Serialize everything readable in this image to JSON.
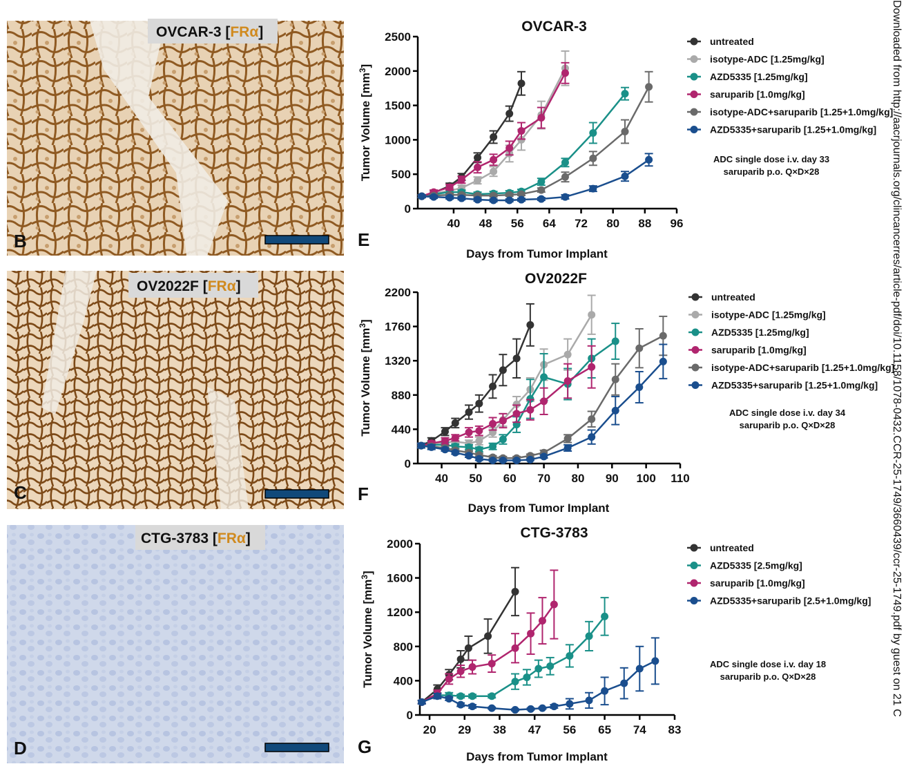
{
  "images": [
    {
      "title": "OVCAR-3",
      "tag": "FRα",
      "label": "B",
      "stain": "brown"
    },
    {
      "title": "OV2022F",
      "tag": "FRα",
      "label": "C",
      "stain": "brown"
    },
    {
      "title": "CTG-3783",
      "tag": "FRα",
      "label": "D",
      "stain": "blue"
    }
  ],
  "colors": {
    "untreated": "#333333",
    "isotype": "#aaaaaa",
    "azd": "#1a9088",
    "saruparib": "#b0256e",
    "iso_sar": "#6a6a6a",
    "azd_sar": "#1a4e8e",
    "scalebar": "#11497a"
  },
  "sidebar_text": "Downloaded from http://aacrjournals.org/clincancerres/article-pdf/doi/10.1158/1078-0432.CCR-25-1749/3660439/ccr-25-1749.pdf by guest on 21 C",
  "chart_data": [
    {
      "type": "line",
      "panel_label": "E",
      "title": "OVCAR-3",
      "xlabel": "Days from Tumor Implant",
      "ylabel": "Tumor Volume [mm",
      "ylabel_sup": "3",
      "ylabel_end": "]",
      "xlim": [
        31,
        96
      ],
      "ylim": [
        0,
        2500
      ],
      "xticks": [
        40,
        48,
        56,
        64,
        72,
        80,
        88,
        96
      ],
      "yticks": [
        0,
        500,
        1000,
        1500,
        2000,
        2500
      ],
      "note": [
        "ADC single dose i.v. day 33",
        "saruparib p.o. Q×D×28"
      ],
      "series": [
        {
          "name": "untreated",
          "color_key": "untreated",
          "x": [
            32,
            35,
            39,
            42,
            46,
            50,
            54,
            57
          ],
          "y": [
            180,
            230,
            330,
            460,
            740,
            1040,
            1380,
            1820
          ],
          "err": [
            20,
            30,
            40,
            50,
            70,
            90,
            110,
            170
          ]
        },
        {
          "name": "isotype-ADC [1.25mg/kg]",
          "color_key": "isotype",
          "x": [
            32,
            35,
            39,
            42,
            46,
            50,
            54,
            57,
            62,
            68
          ],
          "y": [
            180,
            220,
            260,
            300,
            410,
            540,
            800,
            1000,
            1360,
            2040
          ],
          "err": [
            20,
            30,
            30,
            40,
            50,
            70,
            120,
            150,
            200,
            250
          ]
        },
        {
          "name": "AZD5335 [1.25mg/kg]",
          "color_key": "azd",
          "x": [
            32,
            35,
            39,
            42,
            46,
            50,
            54,
            57,
            62,
            68,
            75,
            83
          ],
          "y": [
            180,
            210,
            240,
            240,
            210,
            220,
            230,
            250,
            390,
            670,
            1100,
            1670
          ],
          "err": [
            20,
            20,
            30,
            30,
            30,
            30,
            30,
            30,
            50,
            60,
            150,
            90
          ]
        },
        {
          "name": "saruparib [1.0mg/kg]",
          "color_key": "saruparib",
          "x": [
            32,
            35,
            39,
            42,
            46,
            50,
            54,
            57,
            62,
            68
          ],
          "y": [
            180,
            240,
            310,
            420,
            600,
            710,
            880,
            1130,
            1320,
            1970
          ],
          "err": [
            20,
            30,
            40,
            50,
            80,
            80,
            100,
            120,
            150,
            150
          ]
        },
        {
          "name": "isotype-ADC+saruparib [1.25+1.0mg/kg]",
          "color_key": "iso_sar",
          "x": [
            32,
            35,
            39,
            42,
            46,
            50,
            54,
            57,
            62,
            68,
            75,
            83,
            89
          ],
          "y": [
            180,
            190,
            200,
            200,
            190,
            190,
            200,
            210,
            270,
            460,
            730,
            1120,
            1770
          ],
          "err": [
            20,
            20,
            20,
            20,
            20,
            20,
            20,
            20,
            30,
            70,
            100,
            170,
            220
          ]
        },
        {
          "name": "AZD5335+saruparib [1.25+1.0mg/kg]",
          "color_key": "azd_sar",
          "x": [
            32,
            35,
            39,
            42,
            46,
            50,
            54,
            57,
            62,
            68,
            75,
            83,
            89
          ],
          "y": [
            180,
            170,
            160,
            150,
            130,
            120,
            120,
            130,
            140,
            170,
            290,
            470,
            710
          ],
          "err": [
            20,
            20,
            20,
            20,
            20,
            20,
            20,
            20,
            20,
            30,
            40,
            70,
            90
          ]
        }
      ]
    },
    {
      "type": "line",
      "panel_label": "F",
      "title": "OV2022F",
      "xlabel": "Days from Tumor Implant",
      "ylabel": "Tumor Volume [mm",
      "ylabel_sup": "3",
      "ylabel_end": "]",
      "xlim": [
        33,
        110
      ],
      "ylim": [
        0,
        2200
      ],
      "xticks": [
        40,
        50,
        60,
        70,
        80,
        90,
        100,
        110
      ],
      "yticks": [
        0,
        440,
        880,
        1320,
        1760,
        2200
      ],
      "note": [
        "ADC single dose i.v. day 34",
        "saruparib p.o. Q×D×28"
      ],
      "series": [
        {
          "name": "untreated",
          "color_key": "untreated",
          "x": [
            34,
            37,
            41,
            44,
            48,
            51,
            55,
            58,
            62,
            66
          ],
          "y": [
            230,
            290,
            410,
            520,
            660,
            770,
            990,
            1200,
            1350,
            1780
          ],
          "err": [
            30,
            40,
            50,
            60,
            90,
            110,
            150,
            200,
            250,
            270
          ]
        },
        {
          "name": "isotype-ADC [1.25mg/kg]",
          "color_key": "isotype",
          "x": [
            34,
            37,
            41,
            44,
            48,
            51,
            55,
            58,
            62,
            66,
            70,
            77,
            84
          ],
          "y": [
            230,
            250,
            270,
            280,
            260,
            290,
            400,
            560,
            760,
            950,
            1270,
            1400,
            1910
          ],
          "err": [
            30,
            30,
            40,
            40,
            40,
            50,
            60,
            80,
            100,
            150,
            200,
            200,
            250
          ]
        },
        {
          "name": "AZD5335 [1.25mg/kg]",
          "color_key": "azd",
          "x": [
            34,
            37,
            41,
            44,
            48,
            51,
            55,
            58,
            62,
            66,
            70,
            77,
            84,
            91
          ],
          "y": [
            230,
            240,
            240,
            220,
            210,
            180,
            220,
            310,
            500,
            830,
            1110,
            1020,
            1350,
            1570
          ],
          "err": [
            30,
            30,
            30,
            30,
            30,
            30,
            40,
            60,
            100,
            250,
            300,
            200,
            250,
            230
          ]
        },
        {
          "name": "saruparib [1.0mg/kg]",
          "color_key": "saruparib",
          "x": [
            34,
            37,
            41,
            44,
            48,
            51,
            55,
            58,
            62,
            66,
            70,
            77,
            84
          ],
          "y": [
            230,
            260,
            290,
            330,
            400,
            420,
            510,
            550,
            640,
            690,
            800,
            1060,
            1240
          ],
          "err": [
            30,
            30,
            40,
            40,
            60,
            60,
            80,
            90,
            110,
            130,
            170,
            220,
            270
          ]
        },
        {
          "name": "isotype-ADC+saruparib [1.25+1.0mg/kg]",
          "color_key": "iso_sar",
          "x": [
            34,
            37,
            41,
            44,
            48,
            51,
            55,
            58,
            62,
            66,
            70,
            77,
            84,
            91,
            98,
            105
          ],
          "y": [
            230,
            220,
            200,
            170,
            140,
            110,
            80,
            70,
            70,
            100,
            140,
            320,
            570,
            1080,
            1480,
            1640
          ],
          "err": [
            30,
            30,
            30,
            20,
            20,
            20,
            20,
            20,
            20,
            20,
            30,
            50,
            100,
            200,
            250,
            250
          ]
        },
        {
          "name": "AZD5335+saruparib [1.25+1.0mg/kg]",
          "color_key": "azd_sar",
          "x": [
            34,
            37,
            41,
            44,
            48,
            51,
            55,
            58,
            62,
            66,
            70,
            77,
            84,
            91,
            98,
            105
          ],
          "y": [
            230,
            210,
            180,
            140,
            100,
            60,
            40,
            40,
            40,
            50,
            90,
            200,
            340,
            680,
            980,
            1310
          ],
          "err": [
            30,
            30,
            20,
            20,
            20,
            20,
            10,
            10,
            10,
            10,
            20,
            40,
            90,
            180,
            200,
            220
          ]
        }
      ]
    },
    {
      "type": "line",
      "panel_label": "G",
      "title": "CTG-3783",
      "xlabel": "Days from Tumor Implant",
      "ylabel": "Tumor Volume [mm",
      "ylabel_sup": "3",
      "ylabel_end": "]",
      "xlim": [
        17.5,
        83
      ],
      "ylim": [
        0,
        2000
      ],
      "xticks": [
        20,
        29,
        38,
        47,
        56,
        65,
        74,
        83
      ],
      "yticks": [
        0,
        400,
        800,
        1200,
        1600,
        2000
      ],
      "note": [
        "ADC single dose i.v. day 18",
        "saruparib p.o. Q×D×28"
      ],
      "series": [
        {
          "name": "untreated",
          "color_key": "untreated",
          "x": [
            18,
            22,
            25,
            28,
            30,
            35,
            42
          ],
          "y": [
            150,
            300,
            470,
            650,
            780,
            920,
            1440
          ],
          "err": [
            20,
            50,
            60,
            100,
            140,
            200,
            280
          ]
        },
        {
          "name": "AZD5335 [2.5mg/kg]",
          "color_key": "azd",
          "x": [
            18,
            22,
            25,
            28,
            31,
            36,
            42,
            45,
            48,
            51,
            56,
            61,
            65
          ],
          "y": [
            150,
            230,
            230,
            220,
            220,
            220,
            390,
            440,
            540,
            570,
            690,
            920,
            1150
          ],
          "err": [
            20,
            30,
            30,
            20,
            20,
            20,
            90,
            90,
            100,
            100,
            130,
            170,
            220
          ]
        },
        {
          "name": "saruparib [1.0mg/kg]",
          "color_key": "saruparib",
          "x": [
            18,
            22,
            25,
            28,
            31,
            36,
            42,
            46,
            49,
            52
          ],
          "y": [
            150,
            250,
            420,
            510,
            560,
            600,
            780,
            950,
            1100,
            1290
          ],
          "err": [
            20,
            40,
            60,
            70,
            80,
            100,
            170,
            240,
            270,
            400
          ]
        },
        {
          "name": "AZD5335+saruparib [2.5+1.0mg/kg]",
          "color_key": "azd_sar",
          "x": [
            18,
            22,
            25,
            28,
            31,
            36,
            42,
            46,
            49,
            52,
            56,
            61,
            65,
            70,
            74,
            78
          ],
          "y": [
            150,
            220,
            190,
            120,
            100,
            80,
            60,
            70,
            80,
            100,
            130,
            170,
            280,
            370,
            540,
            630
          ],
          "err": [
            20,
            30,
            20,
            20,
            20,
            10,
            10,
            10,
            10,
            20,
            60,
            90,
            160,
            180,
            260,
            270
          ]
        }
      ]
    }
  ]
}
